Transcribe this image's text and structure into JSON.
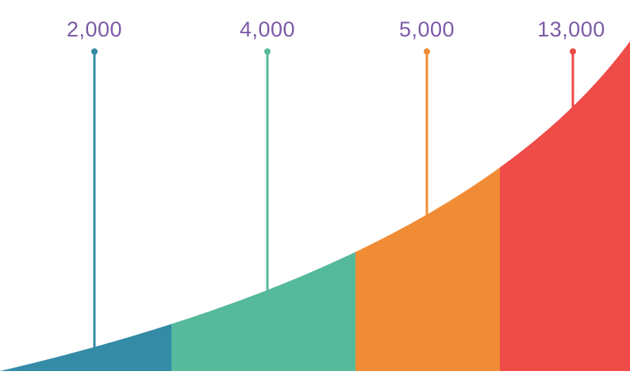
{
  "chart_data": {
    "type": "area",
    "series": [
      {
        "value": 2000,
        "label": "2,000",
        "color": "#338ba6"
      },
      {
        "value": 4000,
        "label": "4,000",
        "color": "#55ba9b"
      },
      {
        "value": 5000,
        "label": "5,000",
        "color": "#f18c36"
      },
      {
        "value": 13000,
        "label": "13,000",
        "color": "#ef4b48"
      }
    ],
    "label_color": "#7c5aa6",
    "grid": false,
    "legend": "none"
  }
}
